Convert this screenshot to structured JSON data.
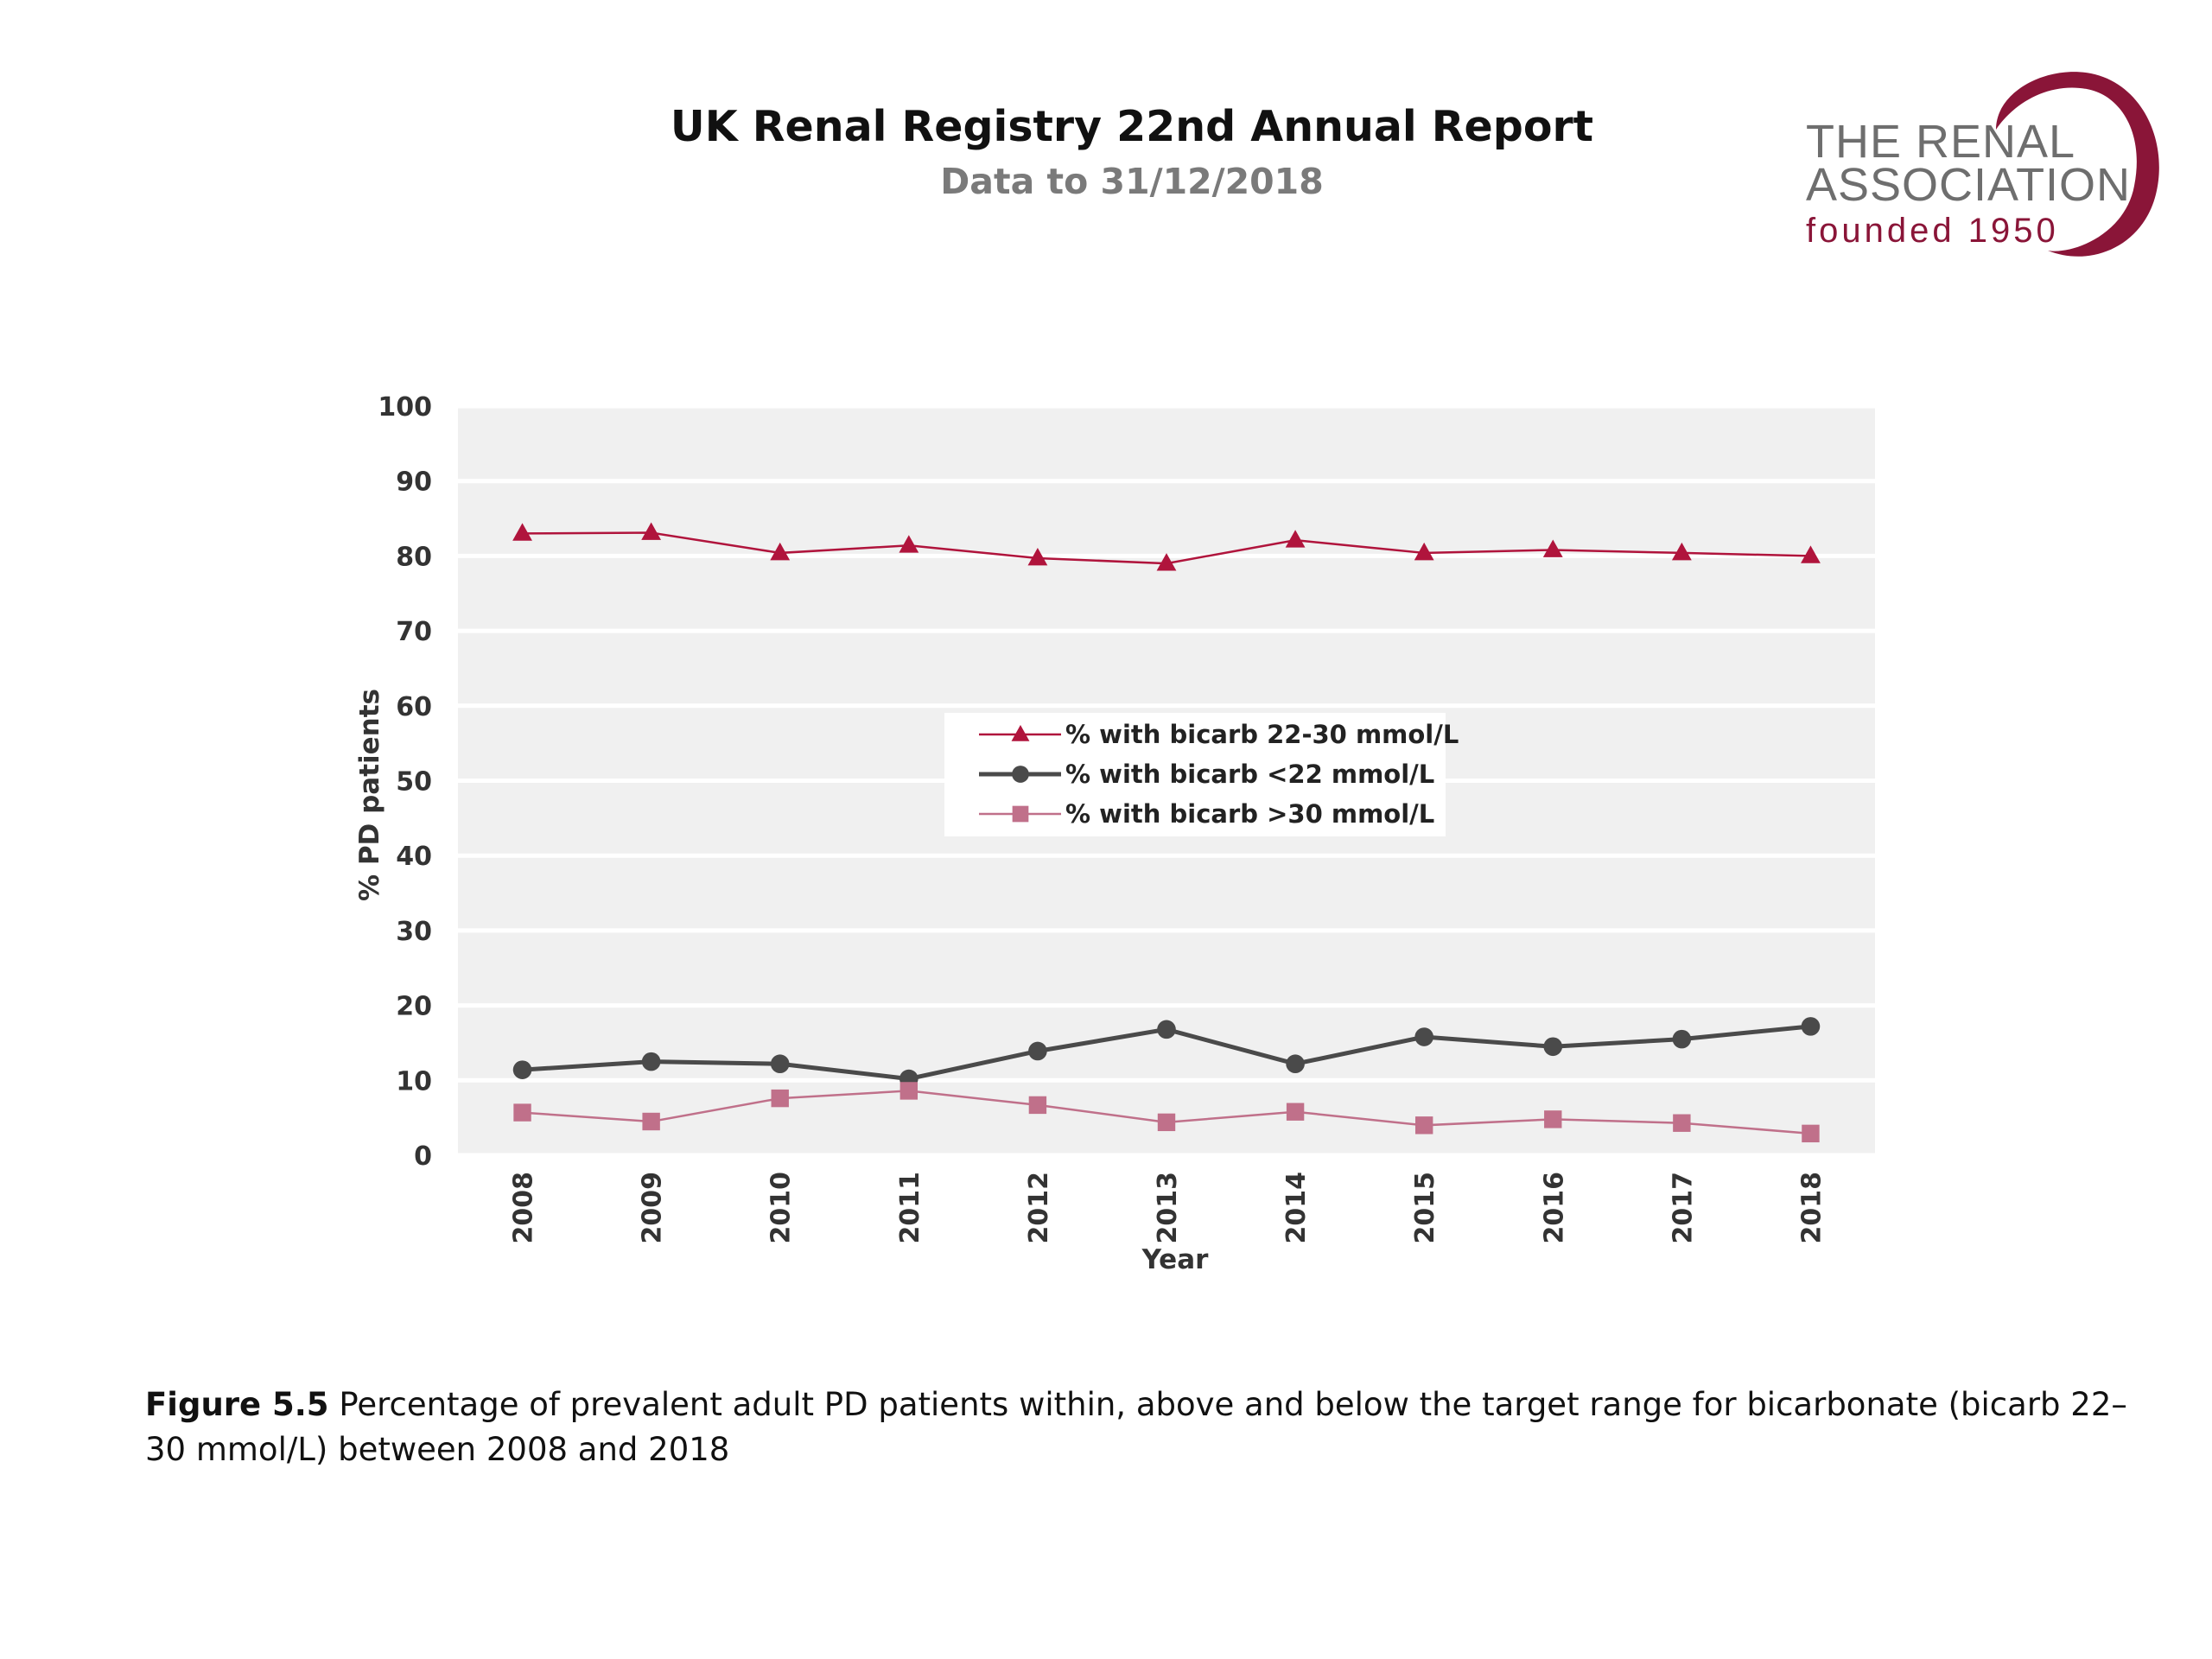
{
  "header": {
    "title": "UK Renal Registry 22nd Annual Report",
    "subtitle": "Data to 31/12/2018"
  },
  "logo": {
    "line1": "THE RENAL",
    "line2": "ASSOCIATION",
    "line3": "founded 1950"
  },
  "caption": {
    "label": "Figure 5.5",
    "text": "Percentage of prevalent adult PD patients within, above and below the target range for bicarbonate (bicarb 22–30 mmol/L) between 2008 and 2018"
  },
  "colors": {
    "series_in_range": "#b0143c",
    "series_below": "#4a4a4a",
    "series_above": "#c0708a",
    "plot_background": "#f0f0f0",
    "logo_accent": "#8a1538"
  },
  "chart_data": {
    "type": "line",
    "xlabel": "Year",
    "ylabel": "% PD patients",
    "ylim": [
      0,
      100
    ],
    "yticks": [
      0,
      10,
      20,
      30,
      40,
      50,
      60,
      70,
      80,
      90,
      100
    ],
    "categories": [
      "2008",
      "2009",
      "2010",
      "2011",
      "2012",
      "2013",
      "2014",
      "2015",
      "2016",
      "2017",
      "2018"
    ],
    "grid": true,
    "legend_position": "center",
    "series": [
      {
        "name": "% with bicarb 22-30 mmol/L",
        "marker": "triangle",
        "color": "#b0143c",
        "values": [
          83.0,
          83.1,
          80.4,
          81.4,
          79.7,
          79.0,
          82.1,
          80.4,
          80.8,
          80.4,
          80.0
        ]
      },
      {
        "name": "% with bicarb <22 mmol/L",
        "marker": "circle",
        "color": "#4a4a4a",
        "values": [
          11.4,
          12.5,
          12.2,
          10.2,
          13.9,
          16.8,
          12.2,
          15.8,
          14.5,
          15.5,
          17.2
        ]
      },
      {
        "name": "% with bicarb >30 mmol/L",
        "marker": "square",
        "color": "#c0708a",
        "values": [
          5.7,
          4.5,
          7.6,
          8.6,
          6.7,
          4.4,
          5.8,
          4.0,
          4.8,
          4.3,
          2.9
        ]
      }
    ]
  }
}
